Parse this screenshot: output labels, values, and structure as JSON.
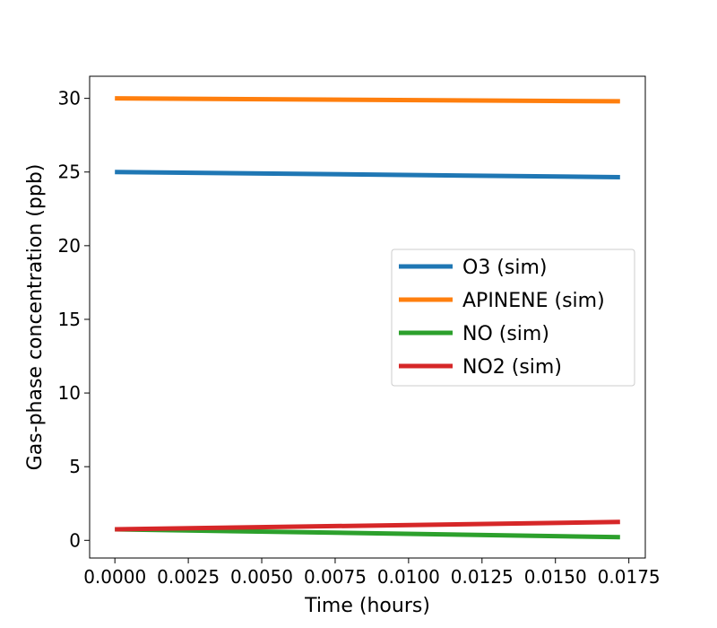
{
  "chart_data": {
    "type": "line",
    "title": "",
    "xlabel": "Time (hours)",
    "ylabel": "Gas-phase concentration (ppb)",
    "xlim": [
      -0.00086,
      0.01806
    ],
    "ylim": [
      -1.2,
      31.5
    ],
    "xticks": [
      0.0,
      0.0025,
      0.005,
      0.0075,
      0.01,
      0.0125,
      0.015,
      0.0175
    ],
    "xtick_labels": [
      "0.0000",
      "0.0025",
      "0.0050",
      "0.0075",
      "0.0100",
      "0.0125",
      "0.0150",
      "0.0175"
    ],
    "yticks": [
      0,
      5,
      10,
      15,
      20,
      25,
      30
    ],
    "ytick_labels": [
      "0",
      "5",
      "10",
      "15",
      "20",
      "25",
      "30"
    ],
    "grid": false,
    "legend_position": "center-right",
    "x": [
      0.0,
      0.0172
    ],
    "series": [
      {
        "name": "O3 (sim)",
        "color": "#1f77b4",
        "values": [
          25.0,
          24.65
        ]
      },
      {
        "name": "APINENE (sim)",
        "color": "#ff7f0e",
        "values": [
          30.0,
          29.8
        ]
      },
      {
        "name": "NO (sim)",
        "color": "#2ca02c",
        "values": [
          0.75,
          0.22
        ]
      },
      {
        "name": "NO2 (sim)",
        "color": "#d62728",
        "values": [
          0.75,
          1.25
        ]
      }
    ]
  }
}
